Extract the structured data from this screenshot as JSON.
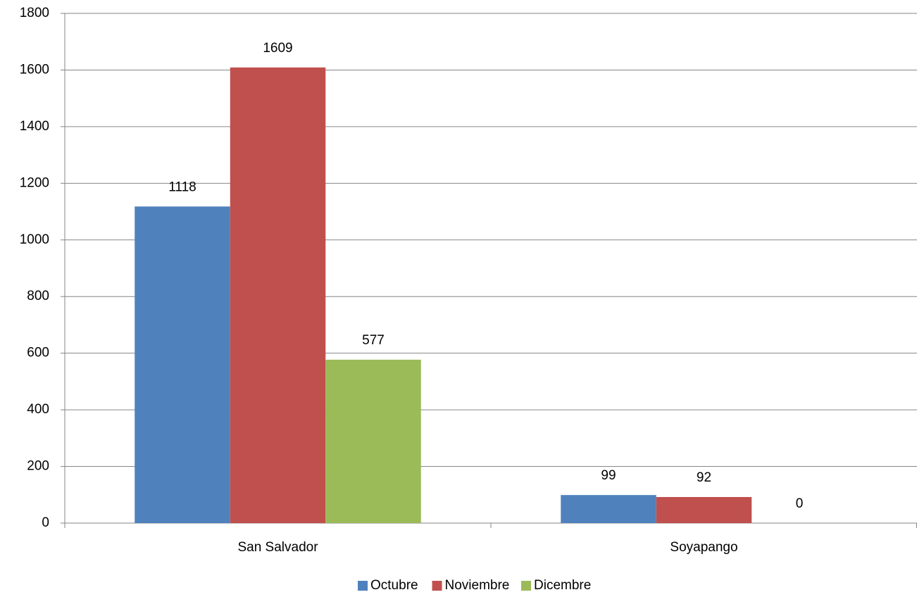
{
  "chart_data": {
    "type": "bar",
    "categories": [
      "San Salvador",
      "Soyapango"
    ],
    "series": [
      {
        "name": "Octubre",
        "color": "#4f81bd",
        "values": [
          1118,
          99
        ]
      },
      {
        "name": "Noviembre",
        "color": "#c0504d",
        "values": [
          1609,
          92
        ]
      },
      {
        "name": "Dicembre",
        "color": "#9bbb59",
        "values": [
          577,
          0
        ]
      }
    ],
    "ylim": [
      0,
      1800
    ],
    "yticks": [
      0,
      200,
      400,
      600,
      800,
      1000,
      1200,
      1400,
      1600,
      1800
    ],
    "grid": true,
    "legend": "bottom",
    "data_labels": true
  }
}
